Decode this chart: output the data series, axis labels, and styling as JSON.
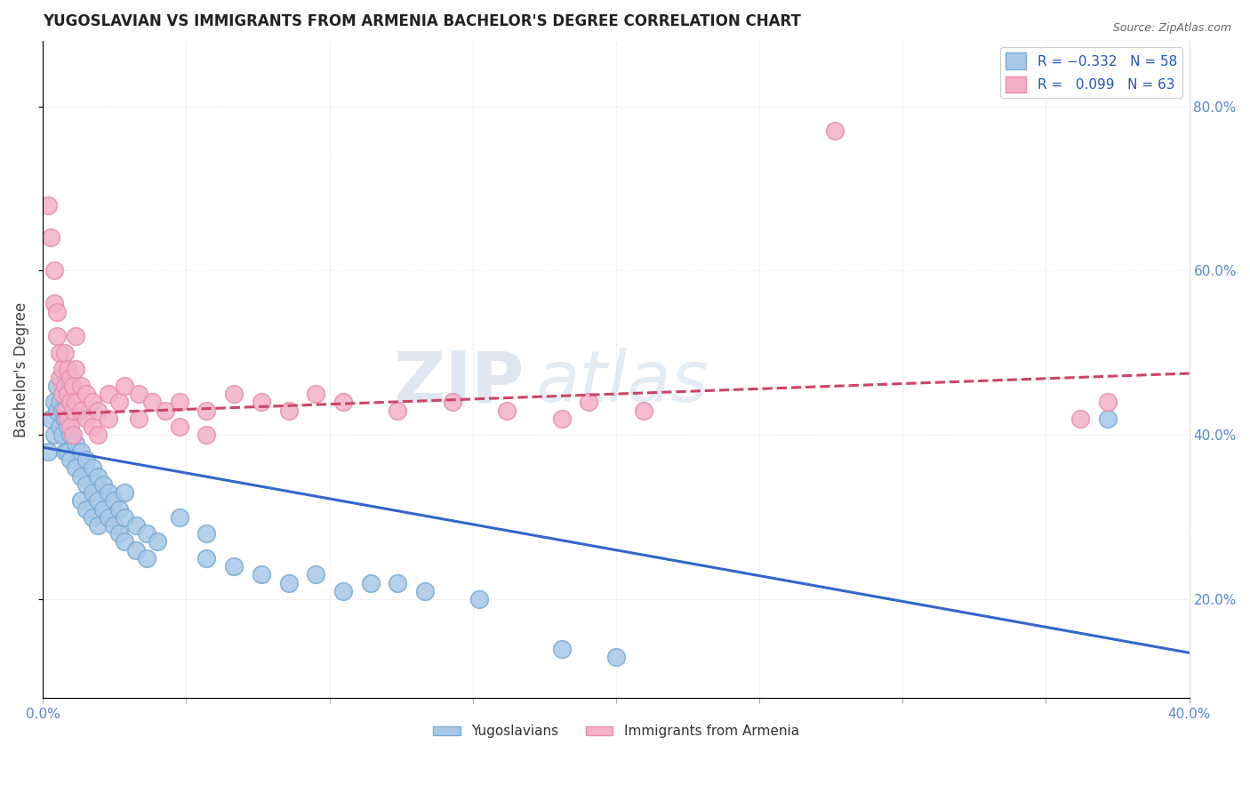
{
  "title": "YUGOSLAVIAN VS IMMIGRANTS FROM ARMENIA BACHELOR'S DEGREE CORRELATION CHART",
  "source": "Source: ZipAtlas.com",
  "ylabel": "Bachelor's Degree",
  "xlim": [
    0.0,
    0.42
  ],
  "ylim": [
    0.08,
    0.88
  ],
  "right_ytick_vals": [
    0.2,
    0.4,
    0.6,
    0.8
  ],
  "blue_scatter": [
    [
      0.002,
      0.38
    ],
    [
      0.003,
      0.42
    ],
    [
      0.004,
      0.44
    ],
    [
      0.004,
      0.4
    ],
    [
      0.005,
      0.46
    ],
    [
      0.005,
      0.43
    ],
    [
      0.006,
      0.41
    ],
    [
      0.006,
      0.44
    ],
    [
      0.007,
      0.4
    ],
    [
      0.007,
      0.43
    ],
    [
      0.008,
      0.42
    ],
    [
      0.008,
      0.38
    ],
    [
      0.009,
      0.41
    ],
    [
      0.009,
      0.38
    ],
    [
      0.01,
      0.44
    ],
    [
      0.01,
      0.4
    ],
    [
      0.01,
      0.37
    ],
    [
      0.012,
      0.39
    ],
    [
      0.012,
      0.36
    ],
    [
      0.014,
      0.38
    ],
    [
      0.014,
      0.35
    ],
    [
      0.014,
      0.32
    ],
    [
      0.016,
      0.37
    ],
    [
      0.016,
      0.34
    ],
    [
      0.016,
      0.31
    ],
    [
      0.018,
      0.36
    ],
    [
      0.018,
      0.33
    ],
    [
      0.018,
      0.3
    ],
    [
      0.02,
      0.35
    ],
    [
      0.02,
      0.32
    ],
    [
      0.02,
      0.29
    ],
    [
      0.022,
      0.34
    ],
    [
      0.022,
      0.31
    ],
    [
      0.024,
      0.33
    ],
    [
      0.024,
      0.3
    ],
    [
      0.026,
      0.32
    ],
    [
      0.026,
      0.29
    ],
    [
      0.028,
      0.31
    ],
    [
      0.028,
      0.28
    ],
    [
      0.03,
      0.33
    ],
    [
      0.03,
      0.3
    ],
    [
      0.03,
      0.27
    ],
    [
      0.034,
      0.29
    ],
    [
      0.034,
      0.26
    ],
    [
      0.038,
      0.28
    ],
    [
      0.038,
      0.25
    ],
    [
      0.042,
      0.27
    ],
    [
      0.05,
      0.3
    ],
    [
      0.06,
      0.28
    ],
    [
      0.06,
      0.25
    ],
    [
      0.07,
      0.24
    ],
    [
      0.08,
      0.23
    ],
    [
      0.09,
      0.22
    ],
    [
      0.1,
      0.23
    ],
    [
      0.11,
      0.21
    ],
    [
      0.12,
      0.22
    ],
    [
      0.13,
      0.22
    ],
    [
      0.14,
      0.21
    ],
    [
      0.16,
      0.2
    ],
    [
      0.19,
      0.14
    ],
    [
      0.21,
      0.13
    ],
    [
      0.39,
      0.42
    ]
  ],
  "pink_scatter": [
    [
      0.002,
      0.68
    ],
    [
      0.003,
      0.64
    ],
    [
      0.004,
      0.6
    ],
    [
      0.004,
      0.56
    ],
    [
      0.005,
      0.55
    ],
    [
      0.005,
      0.52
    ],
    [
      0.006,
      0.5
    ],
    [
      0.006,
      0.47
    ],
    [
      0.007,
      0.48
    ],
    [
      0.007,
      0.45
    ],
    [
      0.008,
      0.5
    ],
    [
      0.008,
      0.46
    ],
    [
      0.008,
      0.43
    ],
    [
      0.009,
      0.48
    ],
    [
      0.009,
      0.45
    ],
    [
      0.009,
      0.42
    ],
    [
      0.01,
      0.47
    ],
    [
      0.01,
      0.44
    ],
    [
      0.01,
      0.41
    ],
    [
      0.011,
      0.46
    ],
    [
      0.011,
      0.43
    ],
    [
      0.011,
      0.4
    ],
    [
      0.012,
      0.52
    ],
    [
      0.012,
      0.48
    ],
    [
      0.012,
      0.44
    ],
    [
      0.014,
      0.46
    ],
    [
      0.014,
      0.43
    ],
    [
      0.016,
      0.45
    ],
    [
      0.016,
      0.42
    ],
    [
      0.018,
      0.44
    ],
    [
      0.018,
      0.41
    ],
    [
      0.02,
      0.43
    ],
    [
      0.02,
      0.4
    ],
    [
      0.024,
      0.45
    ],
    [
      0.024,
      0.42
    ],
    [
      0.028,
      0.44
    ],
    [
      0.03,
      0.46
    ],
    [
      0.035,
      0.45
    ],
    [
      0.035,
      0.42
    ],
    [
      0.04,
      0.44
    ],
    [
      0.045,
      0.43
    ],
    [
      0.05,
      0.44
    ],
    [
      0.05,
      0.41
    ],
    [
      0.06,
      0.43
    ],
    [
      0.06,
      0.4
    ],
    [
      0.07,
      0.45
    ],
    [
      0.08,
      0.44
    ],
    [
      0.09,
      0.43
    ],
    [
      0.1,
      0.45
    ],
    [
      0.11,
      0.44
    ],
    [
      0.13,
      0.43
    ],
    [
      0.15,
      0.44
    ],
    [
      0.17,
      0.43
    ],
    [
      0.19,
      0.42
    ],
    [
      0.2,
      0.44
    ],
    [
      0.22,
      0.43
    ],
    [
      0.29,
      0.77
    ],
    [
      0.38,
      0.42
    ],
    [
      0.39,
      0.44
    ]
  ],
  "blue_line_x": [
    0.0,
    0.42
  ],
  "blue_line_y": [
    0.385,
    0.135
  ],
  "pink_line_x": [
    0.0,
    0.42
  ],
  "pink_line_y": [
    0.425,
    0.475
  ],
  "blue_color": "#a8c8e8",
  "pink_color": "#f4b0c8",
  "blue_marker_edge": "#7aacd4",
  "pink_marker_edge": "#e890b0",
  "blue_line_color": "#3366cc",
  "pink_line_color": "#cc4466",
  "watermark_color": "#c8d8e8",
  "background_color": "#ffffff",
  "grid_color": "#e0e0e0"
}
